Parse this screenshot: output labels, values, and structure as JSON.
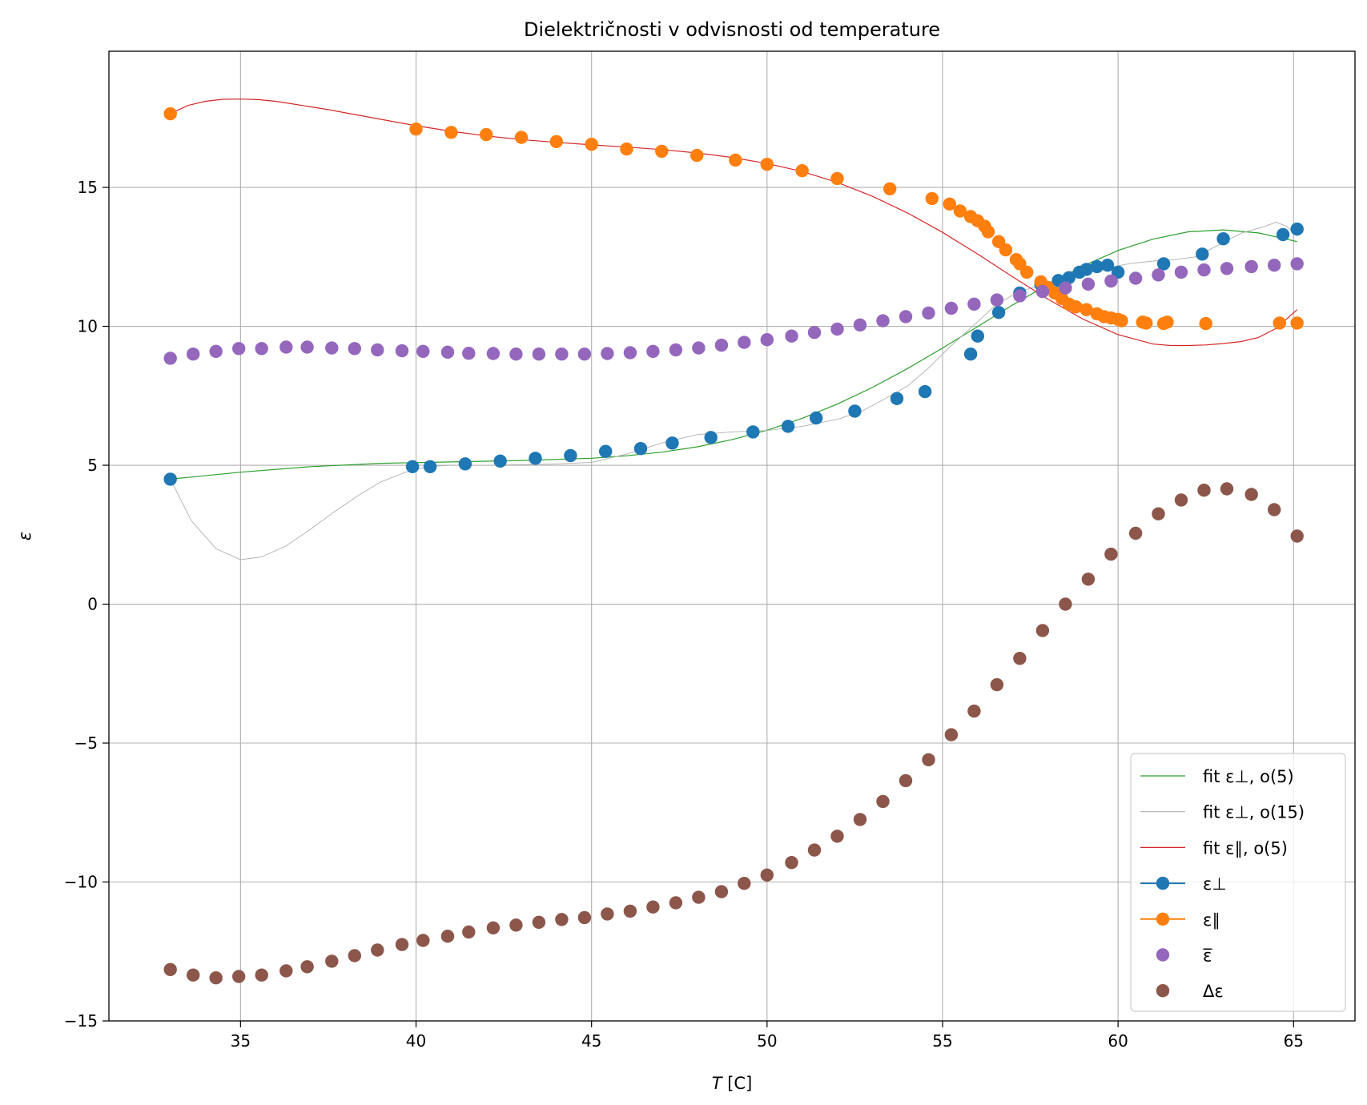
{
  "chart_data": {
    "type": "scatter",
    "title": "Dielektričnosti v odvisnosti od temperature",
    "xlabel_italic": "T",
    "xlabel_unit": "[C]",
    "ylabel": "ε",
    "xlim": [
      31.25,
      66.75
    ],
    "ylim": [
      -15,
      19.9
    ],
    "x_ticks": [
      35,
      40,
      45,
      50,
      55,
      60,
      65
    ],
    "y_ticks": [
      -15,
      -10,
      -5,
      0,
      5,
      10,
      15
    ],
    "x_tick_labels": [
      "35",
      "40",
      "45",
      "50",
      "55",
      "60",
      "65"
    ],
    "y_tick_labels": [
      "−15",
      "−10",
      "−5",
      "0",
      "5",
      "10",
      "15"
    ],
    "grid": true,
    "legend_position": "lower right",
    "legend": [
      {
        "label": "fit ε⊥, o(5)",
        "color": "#2ca02c",
        "kind": "line"
      },
      {
        "label": "fit ε⊥, o(15)",
        "color": "#b0b0b0",
        "kind": "line"
      },
      {
        "label": "fit ε∥, o(5)",
        "color": "#d62728",
        "kind": "line"
      },
      {
        "label": "ε⊥",
        "color": "#1f77b4",
        "kind": "line-marker"
      },
      {
        "label": "ε∥",
        "color": "#ff7f0e",
        "kind": "line-marker"
      },
      {
        "label": "ε̅",
        "color": "#9467bd",
        "kind": "marker"
      },
      {
        "label": "Δε",
        "color": "#8c564b",
        "kind": "marker"
      }
    ],
    "series": [
      {
        "name": "ε⊥",
        "kind": "points",
        "color": "#1f77b4",
        "x": [
          33.0,
          39.9,
          40.4,
          41.4,
          42.4,
          43.4,
          44.4,
          45.4,
          46.4,
          47.3,
          48.4,
          49.6,
          50.6,
          51.4,
          52.5,
          53.7,
          54.5,
          55.8,
          56.0,
          56.6,
          57.2,
          57.8,
          58.3,
          58.6,
          58.9,
          59.1,
          59.4,
          59.7,
          60.0,
          61.3,
          62.4,
          63.0,
          64.7,
          65.1
        ],
        "y": [
          4.5,
          4.95,
          4.95,
          5.05,
          5.15,
          5.25,
          5.35,
          5.5,
          5.6,
          5.8,
          6.0,
          6.2,
          6.4,
          6.7,
          6.95,
          7.4,
          7.65,
          9.0,
          9.65,
          10.5,
          11.2,
          11.5,
          11.65,
          11.75,
          11.95,
          12.05,
          12.15,
          12.2,
          11.95,
          12.25,
          12.6,
          13.15,
          13.3,
          13.5
        ]
      },
      {
        "name": "ε∥",
        "kind": "points",
        "color": "#ff7f0e",
        "x": [
          33.0,
          40.0,
          41.0,
          42.0,
          43.0,
          44.0,
          45.0,
          46.0,
          47.0,
          48.0,
          49.1,
          50.0,
          51.0,
          52.0,
          53.5,
          54.7,
          55.2,
          55.5,
          55.8,
          56.0,
          56.2,
          56.3,
          56.6,
          56.8,
          57.1,
          57.2,
          57.4,
          57.8,
          58.0,
          58.2,
          58.4,
          58.6,
          58.8,
          59.1,
          59.4,
          59.6,
          59.8,
          60.0,
          60.1,
          60.7,
          60.8,
          61.3,
          61.4,
          62.5,
          64.6,
          65.1
        ],
        "y": [
          17.65,
          17.1,
          16.98,
          16.9,
          16.8,
          16.65,
          16.55,
          16.38,
          16.3,
          16.15,
          15.98,
          15.83,
          15.6,
          15.32,
          14.95,
          14.6,
          14.4,
          14.15,
          13.95,
          13.8,
          13.6,
          13.4,
          13.05,
          12.75,
          12.4,
          12.25,
          11.95,
          11.6,
          11.4,
          11.2,
          11.0,
          10.8,
          10.7,
          10.6,
          10.45,
          10.35,
          10.3,
          10.25,
          10.2,
          10.15,
          10.12,
          10.1,
          10.15,
          10.1,
          10.12,
          10.12
        ]
      },
      {
        "name": "ε̅",
        "kind": "points",
        "color": "#9467bd",
        "x": [
          33.0,
          33.65,
          34.3,
          34.95,
          35.6,
          36.3,
          36.9,
          37.6,
          38.25,
          38.9,
          39.6,
          40.2,
          40.9,
          41.5,
          42.2,
          42.85,
          43.5,
          44.15,
          44.8,
          45.45,
          46.1,
          46.75,
          47.4,
          48.05,
          48.7,
          49.35,
          50.0,
          50.7,
          51.35,
          52.0,
          52.65,
          53.3,
          53.95,
          54.6,
          55.25,
          55.9,
          56.55,
          57.2,
          57.85,
          58.5,
          59.15,
          59.8,
          60.5,
          61.15,
          61.8,
          62.45,
          63.1,
          63.8,
          64.45,
          65.1
        ],
        "y": [
          8.85,
          9.0,
          9.1,
          9.2,
          9.2,
          9.25,
          9.25,
          9.22,
          9.2,
          9.15,
          9.12,
          9.1,
          9.07,
          9.03,
          9.02,
          9.0,
          9.0,
          9.0,
          9.0,
          9.02,
          9.05,
          9.1,
          9.15,
          9.22,
          9.32,
          9.42,
          9.52,
          9.65,
          9.78,
          9.9,
          10.05,
          10.2,
          10.35,
          10.48,
          10.65,
          10.8,
          10.95,
          11.1,
          11.25,
          11.38,
          11.52,
          11.63,
          11.73,
          11.85,
          11.95,
          12.03,
          12.08,
          12.15,
          12.2,
          12.25
        ]
      },
      {
        "name": "Δε",
        "kind": "points",
        "color": "#8c564b",
        "x": [
          33.0,
          33.65,
          34.3,
          34.95,
          35.6,
          36.3,
          36.9,
          37.6,
          38.25,
          38.9,
          39.6,
          40.2,
          40.9,
          41.5,
          42.2,
          42.85,
          43.5,
          44.15,
          44.8,
          45.45,
          46.1,
          46.75,
          47.4,
          48.05,
          48.7,
          49.35,
          50.0,
          50.7,
          51.35,
          52.0,
          52.65,
          53.3,
          53.95,
          54.6,
          55.25,
          55.9,
          56.55,
          57.2,
          57.85,
          58.5,
          59.15,
          59.8,
          60.5,
          61.15,
          61.8,
          62.45,
          63.1,
          63.8,
          64.45,
          65.1
        ],
        "y": [
          -13.15,
          -13.35,
          -13.45,
          -13.4,
          -13.35,
          -13.2,
          -13.05,
          -12.85,
          -12.65,
          -12.45,
          -12.25,
          -12.1,
          -11.95,
          -11.8,
          -11.65,
          -11.55,
          -11.45,
          -11.35,
          -11.28,
          -11.15,
          -11.05,
          -10.9,
          -10.75,
          -10.55,
          -10.35,
          -10.05,
          -9.75,
          -9.3,
          -8.85,
          -8.35,
          -7.75,
          -7.1,
          -6.35,
          -5.6,
          -4.7,
          -3.85,
          -2.9,
          -1.95,
          -0.95,
          0.0,
          0.9,
          1.8,
          2.55,
          3.25,
          3.75,
          4.1,
          4.15,
          3.95,
          3.4,
          2.45
        ]
      },
      {
        "name": "fit ε⊥, o(5)",
        "kind": "line",
        "color": "#2ca02c",
        "x": [
          33,
          35,
          37,
          39,
          41,
          43,
          45,
          46,
          47,
          48,
          49,
          50,
          51,
          52,
          53,
          54,
          55,
          56,
          57,
          58,
          59,
          60,
          61,
          62,
          63,
          64,
          65.1
        ],
        "y": [
          4.5,
          4.75,
          4.95,
          5.07,
          5.12,
          5.17,
          5.25,
          5.34,
          5.47,
          5.66,
          5.92,
          6.26,
          6.69,
          7.2,
          7.8,
          8.48,
          9.22,
          9.99,
          10.77,
          11.5,
          12.17,
          12.73,
          13.14,
          13.4,
          13.47,
          13.36,
          13.05
        ]
      },
      {
        "name": "fit ε⊥, o(15)",
        "kind": "line",
        "color": "#b0b0b0",
        "x": [
          33.0,
          33.6,
          34.3,
          35.0,
          35.6,
          36.3,
          37.0,
          37.7,
          38.4,
          39.0,
          39.7,
          40.3,
          41.0,
          42.0,
          43.0,
          44.0,
          45.0,
          46.0,
          47.0,
          48.0,
          49.0,
          50.0,
          51.0,
          52.0,
          52.7,
          53.3,
          54.0,
          54.6,
          55.2,
          55.9,
          56.5,
          57.1,
          57.8,
          58.4,
          59.0,
          59.7,
          60.3,
          61.0,
          61.6,
          62.2,
          62.9,
          63.5,
          64.2,
          64.5,
          64.8,
          65.1
        ],
        "y": [
          4.5,
          3.0,
          2.0,
          1.6,
          1.7,
          2.1,
          2.7,
          3.35,
          3.95,
          4.4,
          4.75,
          4.95,
          5.0,
          5.0,
          5.02,
          5.05,
          5.1,
          5.4,
          5.8,
          6.1,
          6.2,
          6.25,
          6.4,
          6.65,
          6.95,
          7.35,
          7.85,
          8.5,
          9.25,
          10.05,
          10.75,
          11.2,
          11.5,
          11.7,
          11.9,
          12.1,
          12.25,
          12.35,
          12.4,
          12.5,
          12.95,
          13.35,
          13.6,
          13.75,
          13.6,
          13.25
        ]
      },
      {
        "name": "fit ε∥, o(5)",
        "kind": "line",
        "color": "#d62728",
        "x": [
          33.0,
          33.5,
          34.0,
          34.5,
          35.0,
          35.5,
          36.0,
          36.5,
          37.0,
          37.5,
          38.0,
          39.0,
          40.0,
          41.0,
          42.0,
          43.0,
          44.0,
          45.0,
          46.0,
          47.0,
          48.0,
          49.0,
          50.0,
          51.0,
          52.0,
          53.0,
          54.0,
          55.0,
          56.0,
          57.0,
          58.0,
          59.0,
          60.0,
          61.0,
          61.5,
          62.0,
          62.5,
          63.0,
          63.5,
          64.0,
          64.5,
          65.1
        ],
        "y": [
          17.65,
          17.95,
          18.1,
          18.17,
          18.18,
          18.16,
          18.1,
          18.0,
          17.9,
          17.8,
          17.68,
          17.45,
          17.22,
          17.02,
          16.85,
          16.72,
          16.62,
          16.53,
          16.45,
          16.36,
          16.24,
          16.08,
          15.86,
          15.57,
          15.18,
          14.68,
          14.08,
          13.38,
          12.6,
          11.78,
          10.98,
          10.26,
          9.7,
          9.36,
          9.31,
          9.31,
          9.33,
          9.38,
          9.45,
          9.6,
          9.92,
          10.6
        ]
      }
    ]
  }
}
